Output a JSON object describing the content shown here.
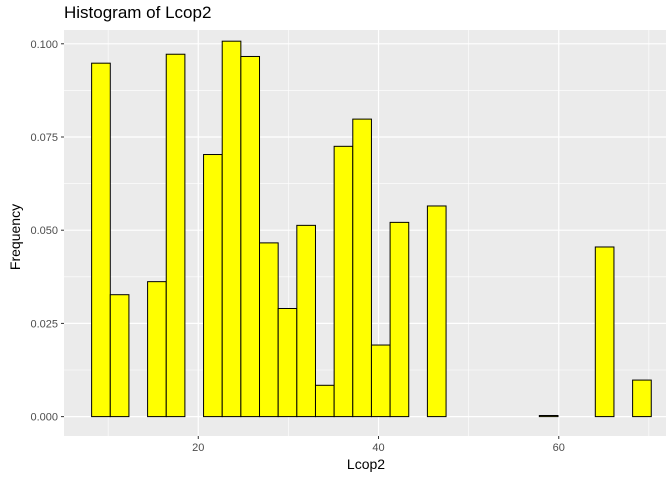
{
  "chart_data": {
    "type": "bar",
    "title": "Histogram of Lcop2",
    "xlabel": "Lcop2",
    "ylabel": "Frequency",
    "xlim": [
      5.1,
      71.9
    ],
    "ylim": [
      -0.0052,
      0.1037
    ],
    "x_ticks": [
      20,
      40,
      60
    ],
    "y_ticks": [
      0.0,
      0.025,
      0.05,
      0.075,
      0.1
    ],
    "y_tick_labels": [
      "0.000",
      "0.025",
      "0.050",
      "0.075",
      "0.100"
    ],
    "binwidth": 2.07,
    "bins": [
      {
        "x": 9.2,
        "value": 0.0948
      },
      {
        "x": 11.27,
        "value": 0.0327
      },
      {
        "x": 13.34,
        "value": 0.0
      },
      {
        "x": 15.41,
        "value": 0.0362
      },
      {
        "x": 17.48,
        "value": 0.0972
      },
      {
        "x": 19.55,
        "value": 0.0
      },
      {
        "x": 21.62,
        "value": 0.0703
      },
      {
        "x": 23.69,
        "value": 0.1007
      },
      {
        "x": 25.76,
        "value": 0.0966
      },
      {
        "x": 27.83,
        "value": 0.0466
      },
      {
        "x": 29.9,
        "value": 0.029
      },
      {
        "x": 31.97,
        "value": 0.0513
      },
      {
        "x": 34.04,
        "value": 0.0084
      },
      {
        "x": 36.11,
        "value": 0.0725
      },
      {
        "x": 38.18,
        "value": 0.0798
      },
      {
        "x": 40.25,
        "value": 0.0192
      },
      {
        "x": 42.32,
        "value": 0.0521
      },
      {
        "x": 44.39,
        "value": 0.0
      },
      {
        "x": 46.46,
        "value": 0.0565
      },
      {
        "x": 48.53,
        "value": 0.0
      },
      {
        "x": 50.6,
        "value": 0.0
      },
      {
        "x": 52.67,
        "value": 0.0
      },
      {
        "x": 54.74,
        "value": 0.0
      },
      {
        "x": 56.81,
        "value": 0.0
      },
      {
        "x": 58.88,
        "value": 0.0003
      },
      {
        "x": 60.95,
        "value": 0.0
      },
      {
        "x": 63.02,
        "value": 0.0
      },
      {
        "x": 65.09,
        "value": 0.0455
      },
      {
        "x": 67.16,
        "value": 0.0
      },
      {
        "x": 69.23,
        "value": 0.0098
      }
    ],
    "bar_fill": "#FFFF00",
    "bar_outline": "#000000",
    "panel_background": "#EBEBEB",
    "grid_color": "#FFFFFF",
    "grid": true
  }
}
